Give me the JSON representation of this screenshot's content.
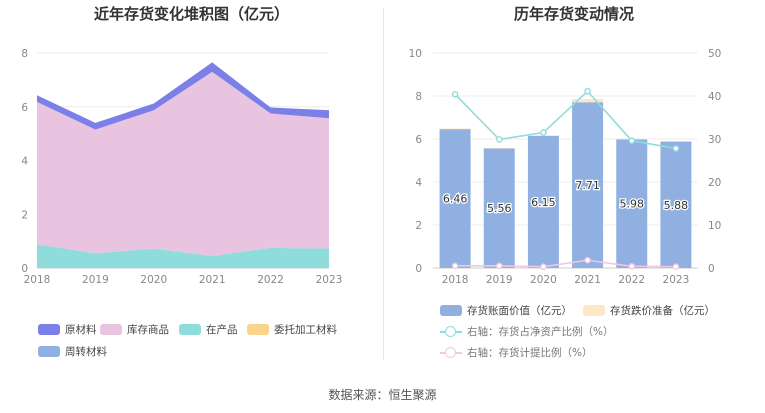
{
  "footer": {
    "source": "数据来源：恒生聚源"
  },
  "chart_data": [
    {
      "type": "area",
      "title": "近年存货变化堆积图（亿元）",
      "x": [
        "2018",
        "2019",
        "2020",
        "2021",
        "2022",
        "2023"
      ],
      "ylim": [
        0,
        8
      ],
      "yticks": [
        "0",
        "2",
        "4",
        "6",
        "8"
      ],
      "grid": true,
      "legend_position": "bottom",
      "series": [
        {
          "name": "原材料",
          "color": "#7b7fe8",
          "values": [
            0.25,
            0.25,
            0.25,
            0.35,
            0.22,
            0.3
          ]
        },
        {
          "name": "库存商品",
          "color": "#e8c4e0",
          "values": [
            5.3,
            4.6,
            5.15,
            6.85,
            5.0,
            4.85
          ]
        },
        {
          "name": "在产品",
          "color": "#8fdcdc",
          "values": [
            0.88,
            0.55,
            0.72,
            0.45,
            0.75,
            0.72
          ]
        },
        {
          "name": "委托加工材料",
          "color": "#f9d48a",
          "values": [
            0,
            0,
            0,
            0,
            0,
            0
          ]
        },
        {
          "name": "周转材料",
          "color": "#8fb0e0",
          "values": [
            0,
            0,
            0,
            0,
            0,
            0
          ]
        }
      ],
      "stack_order": [
        "在产品",
        "库存商品",
        "原材料"
      ]
    },
    {
      "type": "bar",
      "title": "历年存货变动情况",
      "categories": [
        "2018",
        "2019",
        "2020",
        "2021",
        "2022",
        "2023"
      ],
      "ylim": [
        0,
        10
      ],
      "yticks": [
        "0",
        "2",
        "4",
        "6",
        "8",
        "10"
      ],
      "y2lim": [
        0,
        50
      ],
      "y2ticks": [
        "0",
        "10",
        "20",
        "30",
        "40",
        "50"
      ],
      "grid": true,
      "legend_position": "bottom",
      "bars": [
        {
          "name": "存货账面价值（亿元）",
          "color": "#8fb0e0",
          "values": [
            6.46,
            5.56,
            6.15,
            7.71,
            5.98,
            5.88
          ],
          "labels": [
            "6.46",
            "5.56",
            "6.15",
            "7.71",
            "5.98",
            "5.88"
          ]
        },
        {
          "name": "存货跌价准备（亿元）",
          "color": "#fde7c4",
          "values": [
            0.03,
            0.02,
            0.02,
            0.15,
            0.02,
            0.02
          ]
        }
      ],
      "lines": [
        {
          "name": "右轴：存货占净资产比例（%）",
          "color": "#8fdcdc",
          "axis": "right",
          "values": [
            40.4,
            29.9,
            31.5,
            41.1,
            29.6,
            27.8
          ]
        },
        {
          "name": "右轴：存货计提比例（%）",
          "color": "#f0c8e0",
          "axis": "right",
          "values": [
            0.5,
            0.5,
            0.3,
            1.8,
            0.4,
            0.3
          ]
        }
      ]
    }
  ]
}
